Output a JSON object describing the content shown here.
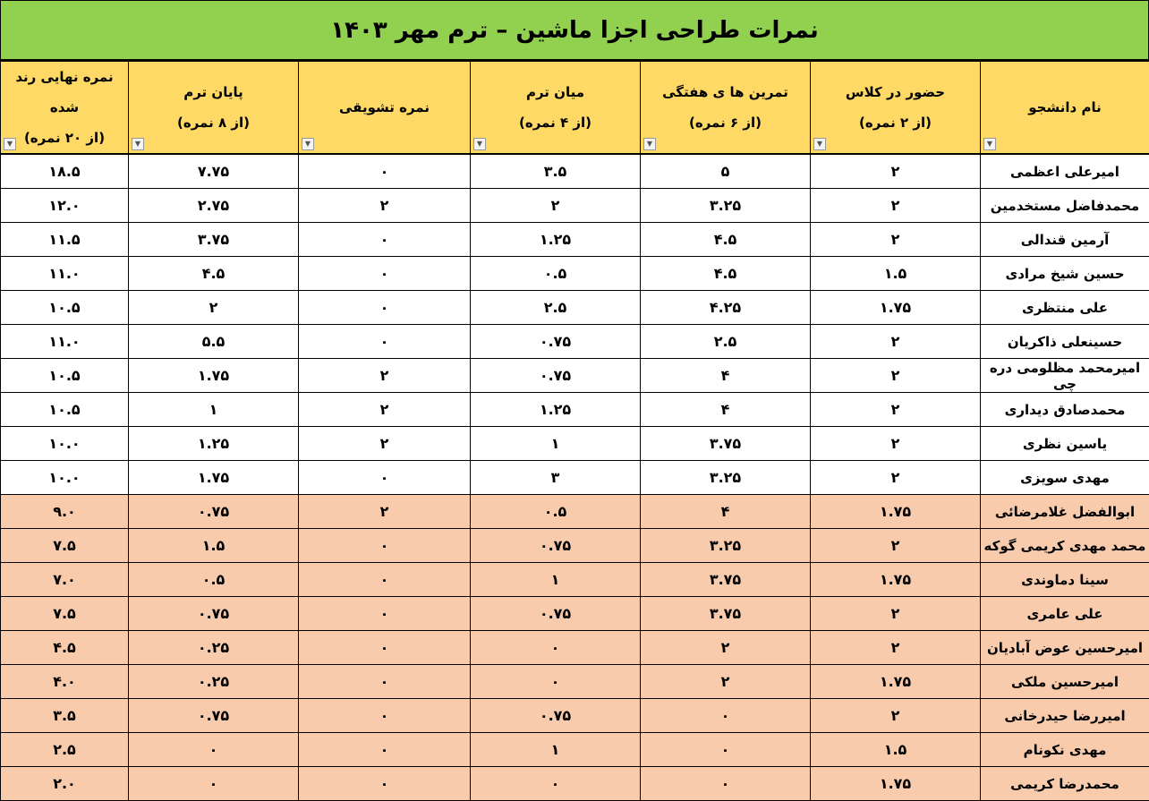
{
  "title": "نمرات طراحی اجزا ماشین – ترم مهر ۱۴۰۳",
  "colors": {
    "title_bg": "#92d050",
    "header_bg": "#ffd966",
    "low_row_bg": "#f8cbad"
  },
  "columns": [
    {
      "line1": "نام دانشجو",
      "line2": ""
    },
    {
      "line1": "حضور در کلاس",
      "line2": "(از ۲ نمره)"
    },
    {
      "line1": "تمرین ها ی هفتگی",
      "line2": "(از ۶ نمره)"
    },
    {
      "line1": "میان ترم",
      "line2": "(از ۴ نمره)"
    },
    {
      "line1": "نمره تشویقی",
      "line2": ""
    },
    {
      "line1": "پایان ترم",
      "line2": "(از ۸ نمره)"
    },
    {
      "line1": "نمره نهایی رند شده",
      "line2": "(از ۲۰ نمره)"
    }
  ],
  "filter_icon": "dropdown-arrow-icon",
  "rows": [
    [
      "امیرعلی اعظمی",
      "۲",
      "۵",
      "۳.۵",
      "۰",
      "۷.۷۵",
      "۱۸.۵"
    ],
    [
      "محمدفاضل مستخدمین",
      "۲",
      "۳.۲۵",
      "۲",
      "۲",
      "۲.۷۵",
      "۱۲.۰"
    ],
    [
      "آرمین قندالی",
      "۲",
      "۴.۵",
      "۱.۲۵",
      "۰",
      "۳.۷۵",
      "۱۱.۵"
    ],
    [
      "حسین شیخ مرادی",
      "۱.۵",
      "۴.۵",
      "۰.۵",
      "۰",
      "۴.۵",
      "۱۱.۰"
    ],
    [
      "علی منتظری",
      "۱.۷۵",
      "۴.۲۵",
      "۲.۵",
      "۰",
      "۲",
      "۱۰.۵"
    ],
    [
      "حسینعلی ذاکریان",
      "۲",
      "۲.۵",
      "۰.۷۵",
      "۰",
      "۵.۵",
      "۱۱.۰"
    ],
    [
      "امیرمحمد مظلومی دره چی",
      "۲",
      "۴",
      "۰.۷۵",
      "۲",
      "۱.۷۵",
      "۱۰.۵"
    ],
    [
      "محمدصادق دیداری",
      "۲",
      "۴",
      "۱.۲۵",
      "۲",
      "۱",
      "۱۰.۵"
    ],
    [
      "یاسین نظری",
      "۲",
      "۳.۷۵",
      "۱",
      "۲",
      "۱.۲۵",
      "۱۰.۰"
    ],
    [
      "مهدی سویزی",
      "۲",
      "۳.۲۵",
      "۳",
      "۰",
      "۱.۷۵",
      "۱۰.۰"
    ],
    [
      "ابوالفضل غلامرضائی",
      "۱.۷۵",
      "۴",
      "۰.۵",
      "۲",
      "۰.۷۵",
      "۹.۰"
    ],
    [
      "محمد مهدی کریمی گوکه",
      "۲",
      "۳.۲۵",
      "۰.۷۵",
      "۰",
      "۱.۵",
      "۷.۵"
    ],
    [
      "سینا دماوندی",
      "۱.۷۵",
      "۳.۷۵",
      "۱",
      "۰",
      "۰.۵",
      "۷.۰"
    ],
    [
      "علی عامری",
      "۲",
      "۳.۷۵",
      "۰.۷۵",
      "۰",
      "۰.۷۵",
      "۷.۵"
    ],
    [
      "امیرحسین عوض آبادیان",
      "۲",
      "۲",
      "۰",
      "۰",
      "۰.۲۵",
      "۴.۵"
    ],
    [
      "امیرحسین ملکی",
      "۱.۷۵",
      "۲",
      "۰",
      "۰",
      "۰.۲۵",
      "۴.۰"
    ],
    [
      "امیررضا حیدرخانی",
      "۲",
      "۰",
      "۰.۷۵",
      "۰",
      "۰.۷۵",
      "۳.۵"
    ],
    [
      "مهدی نکونام",
      "۱.۵",
      "۰",
      "۱",
      "۰",
      "۰",
      "۲.۵"
    ],
    [
      "محمدرضا کریمی",
      "۱.۷۵",
      "۰",
      "۰",
      "۰",
      "۰",
      "۲.۰"
    ]
  ]
}
